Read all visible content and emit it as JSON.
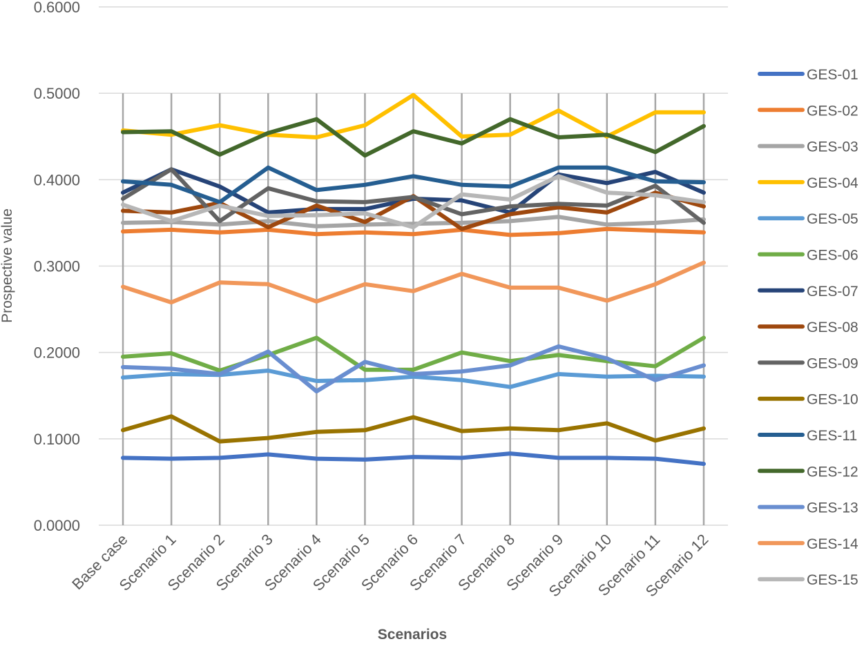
{
  "chart_data": {
    "type": "line",
    "title": "",
    "xlabel": "Scenarios",
    "ylabel": "Prospective value",
    "ylim": [
      0,
      0.6
    ],
    "yticks": [
      "0.0000",
      "0.1000",
      "0.2000",
      "0.3000",
      "0.4000",
      "0.5000",
      "0.6000"
    ],
    "grid": true,
    "legend_position": "right",
    "categories": [
      "Base case",
      "Scenario 1",
      "Scenario 2",
      "Scenario 3",
      "Scenario 4",
      "Scenario 5",
      "Scenario 6",
      "Scenario 7",
      "Scenario 8",
      "Scenario 9",
      "Scenario 10",
      "Scenario 11",
      "Scenario 12"
    ],
    "series": [
      {
        "name": "GES-01",
        "color": "#4472C4",
        "values": [
          0.078,
          0.077,
          0.078,
          0.082,
          0.077,
          0.076,
          0.079,
          0.078,
          0.083,
          0.078,
          0.078,
          0.077,
          0.071
        ]
      },
      {
        "name": "GES-02",
        "color": "#ED7D31",
        "values": [
          0.34,
          0.342,
          0.339,
          0.342,
          0.337,
          0.339,
          0.337,
          0.342,
          0.336,
          0.338,
          0.343,
          0.341,
          0.339
        ]
      },
      {
        "name": "GES-03",
        "color": "#A5A5A5",
        "values": [
          0.35,
          0.351,
          0.348,
          0.352,
          0.346,
          0.348,
          0.349,
          0.35,
          0.352,
          0.357,
          0.348,
          0.35,
          0.354
        ]
      },
      {
        "name": "GES-04",
        "color": "#FFC000",
        "values": [
          0.457,
          0.452,
          0.463,
          0.452,
          0.449,
          0.463,
          0.498,
          0.45,
          0.452,
          0.48,
          0.45,
          0.478,
          0.478
        ]
      },
      {
        "name": "GES-05",
        "color": "#5B9BD5",
        "values": [
          0.171,
          0.175,
          0.174,
          0.179,
          0.167,
          0.168,
          0.172,
          0.168,
          0.16,
          0.175,
          0.172,
          0.173,
          0.172
        ]
      },
      {
        "name": "GES-06",
        "color": "#70AD47",
        "values": [
          0.195,
          0.199,
          0.179,
          0.197,
          0.217,
          0.18,
          0.18,
          0.2,
          0.19,
          0.197,
          0.19,
          0.184,
          0.217
        ]
      },
      {
        "name": "GES-07",
        "color": "#264478",
        "values": [
          0.385,
          0.412,
          0.392,
          0.362,
          0.366,
          0.366,
          0.378,
          0.376,
          0.362,
          0.406,
          0.396,
          0.409,
          0.385
        ]
      },
      {
        "name": "GES-08",
        "color": "#9E480E",
        "values": [
          0.364,
          0.362,
          0.373,
          0.345,
          0.37,
          0.351,
          0.381,
          0.343,
          0.36,
          0.368,
          0.362,
          0.385,
          0.369
        ]
      },
      {
        "name": "GES-09",
        "color": "#636363",
        "values": [
          0.378,
          0.412,
          0.352,
          0.39,
          0.375,
          0.374,
          0.38,
          0.36,
          0.369,
          0.372,
          0.37,
          0.393,
          0.35
        ]
      },
      {
        "name": "GES-10",
        "color": "#997300",
        "values": [
          0.11,
          0.126,
          0.097,
          0.101,
          0.108,
          0.11,
          0.125,
          0.109,
          0.112,
          0.11,
          0.118,
          0.098,
          0.112
        ]
      },
      {
        "name": "GES-11",
        "color": "#255E91",
        "values": [
          0.398,
          0.394,
          0.374,
          0.414,
          0.388,
          0.394,
          0.404,
          0.394,
          0.392,
          0.414,
          0.414,
          0.398,
          0.397
        ]
      },
      {
        "name": "GES-12",
        "color": "#43682B",
        "values": [
          0.455,
          0.456,
          0.429,
          0.454,
          0.47,
          0.428,
          0.456,
          0.442,
          0.47,
          0.449,
          0.452,
          0.432,
          0.462
        ]
      },
      {
        "name": "GES-13",
        "color": "#698ED0",
        "values": [
          0.183,
          0.181,
          0.175,
          0.201,
          0.155,
          0.189,
          0.175,
          0.178,
          0.185,
          0.207,
          0.193,
          0.168,
          0.185
        ]
      },
      {
        "name": "GES-14",
        "color": "#F1975A",
        "values": [
          0.276,
          0.258,
          0.281,
          0.279,
          0.259,
          0.279,
          0.271,
          0.291,
          0.275,
          0.275,
          0.26,
          0.279,
          0.304
        ]
      },
      {
        "name": "GES-15",
        "color": "#B7B7B7",
        "values": [
          0.371,
          0.352,
          0.37,
          0.358,
          0.359,
          0.361,
          0.345,
          0.383,
          0.377,
          0.404,
          0.385,
          0.382,
          0.374
        ]
      }
    ]
  }
}
